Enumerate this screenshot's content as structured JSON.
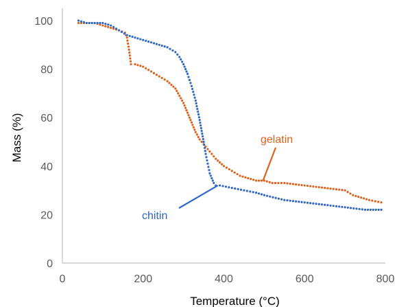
{
  "chart_data": {
    "type": "scatter",
    "title": "",
    "xlabel": "Temperature (°C)",
    "ylabel": "Mass (%)",
    "xlim": [
      0,
      800
    ],
    "ylim": [
      0,
      100
    ],
    "xticks": [
      0,
      200,
      400,
      600,
      800
    ],
    "yticks": [
      0,
      20,
      40,
      60,
      80,
      100
    ],
    "grid": false,
    "legend": "none",
    "series": [
      {
        "name": "gelatin",
        "color": "#e0601c",
        "marker": "dotted",
        "x": [
          40,
          80,
          100,
          120,
          140,
          155,
          160,
          165,
          170,
          180,
          200,
          220,
          240,
          260,
          280,
          290,
          300,
          310,
          320,
          330,
          340,
          350,
          360,
          380,
          400,
          420,
          440,
          460,
          480,
          500,
          520,
          550,
          600,
          650,
          700,
          720,
          740,
          760,
          790
        ],
        "y": [
          99,
          99,
          98,
          97,
          96,
          95,
          93,
          88,
          82,
          82,
          81,
          79,
          77,
          75,
          72,
          69,
          66,
          62,
          58,
          54,
          51,
          49,
          47,
          43,
          40,
          38,
          36,
          35,
          34,
          34,
          33,
          33,
          32,
          31,
          30,
          28,
          27,
          26,
          25
        ]
      },
      {
        "name": "chitin",
        "color": "#2e67c5",
        "marker": "dotted",
        "x": [
          40,
          60,
          80,
          100,
          120,
          140,
          160,
          180,
          200,
          220,
          240,
          260,
          280,
          290,
          300,
          310,
          320,
          330,
          340,
          350,
          355,
          360,
          365,
          370,
          375,
          380,
          390,
          420,
          450,
          480,
          500,
          550,
          600,
          650,
          700,
          750,
          790
        ],
        "y": [
          100,
          99,
          99,
          99,
          98,
          96,
          94,
          93,
          92,
          91,
          90,
          89,
          87,
          85,
          82,
          78,
          73,
          67,
          59,
          50,
          45,
          41,
          37,
          35,
          33,
          32,
          32,
          31,
          30,
          29,
          28,
          26,
          25,
          24,
          23,
          22,
          22
        ]
      }
    ],
    "annotations": [
      {
        "text": "gelatin",
        "series": "gelatin",
        "color": "#e0601c",
        "point": [
          497,
          34
        ]
      },
      {
        "text": "chitin",
        "series": "chitin",
        "color": "#2e67c5",
        "point": [
          385,
          32
        ]
      }
    ]
  }
}
